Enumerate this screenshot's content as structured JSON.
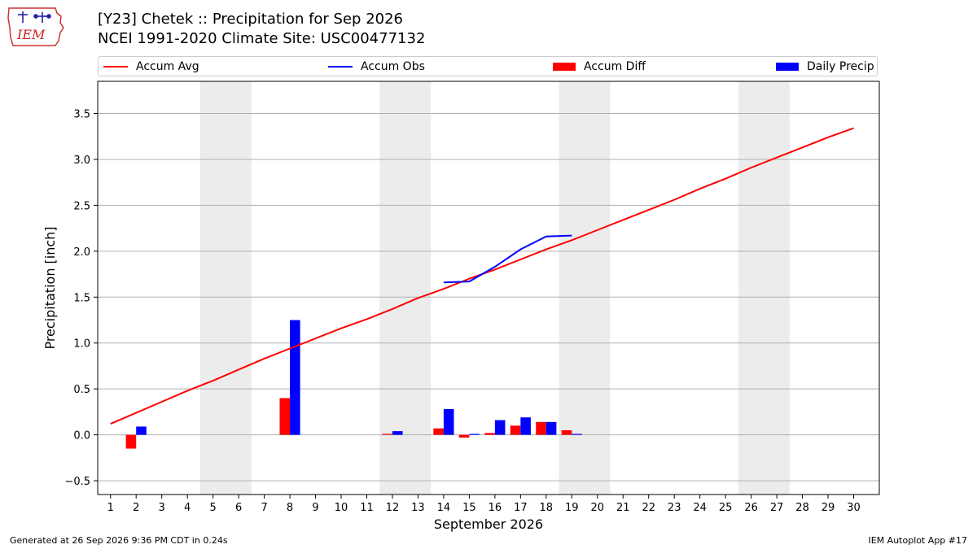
{
  "header": {
    "logo_text": "IEM",
    "title_line1": "[Y23] Chetek :: Precipitation for Sep 2026",
    "title_line2": "NCEI 1991-2020 Climate Site: USC00477132"
  },
  "footer": {
    "left": "Generated at 26 Sep 2026 9:36 PM CDT in 0.24s",
    "right": "IEM Autoplot App #17"
  },
  "colors": {
    "avg": "#ff0000",
    "obs": "#0000ff",
    "diff": "#ff0000",
    "daily": "#0000ff",
    "weekend": "#ececec",
    "grid": "#b0b0b0"
  },
  "chart_data": {
    "type": "bar",
    "title": "[Y23] Chetek :: Precipitation for Sep 2026",
    "subtitle": "NCEI 1991-2020 Climate Site: USC00477132",
    "xlabel": "September 2026",
    "ylabel": "Precipitation [inch]",
    "xlim": [
      0.5,
      31.0
    ],
    "ylim": [
      -0.65,
      3.85
    ],
    "yticks": [
      -0.5,
      0.0,
      0.5,
      1.0,
      1.5,
      2.0,
      2.5,
      3.0,
      3.5
    ],
    "ytick_labels": [
      "−0.5",
      "0.0",
      "0.5",
      "1.0",
      "1.5",
      "2.0",
      "2.5",
      "3.0",
      "3.5"
    ],
    "xticks": [
      1,
      2,
      3,
      4,
      5,
      6,
      7,
      8,
      9,
      10,
      11,
      12,
      13,
      14,
      15,
      16,
      17,
      18,
      19,
      20,
      21,
      22,
      23,
      24,
      25,
      26,
      27,
      28,
      29,
      30
    ],
    "grid": "horizontal",
    "legend_position": "top",
    "weekend_spans": [
      [
        4.5,
        6.5
      ],
      [
        11.5,
        13.5
      ],
      [
        18.5,
        20.5
      ],
      [
        25.5,
        27.5
      ]
    ],
    "series": [
      {
        "name": "Accum Avg",
        "kind": "line",
        "x": [
          1,
          2,
          3,
          4,
          5,
          6,
          7,
          8,
          9,
          10,
          11,
          12,
          13,
          14,
          15,
          16,
          17,
          18,
          19,
          20,
          21,
          22,
          23,
          24,
          25,
          26,
          27,
          28,
          29,
          30
        ],
        "values": [
          0.12,
          0.24,
          0.36,
          0.48,
          0.59,
          0.71,
          0.83,
          0.94,
          1.05,
          1.16,
          1.26,
          1.37,
          1.49,
          1.59,
          1.7,
          1.8,
          1.91,
          2.02,
          2.12,
          2.23,
          2.34,
          2.45,
          2.56,
          2.68,
          2.79,
          2.91,
          3.02,
          3.13,
          3.24,
          3.34
        ]
      },
      {
        "name": "Accum Obs",
        "kind": "line",
        "x": [
          14,
          15,
          16,
          17,
          18,
          19
        ],
        "values": [
          1.66,
          1.67,
          1.83,
          2.02,
          2.16,
          2.17
        ]
      },
      {
        "name": "Accum Diff",
        "kind": "bar",
        "x": [
          2,
          8,
          12,
          14,
          15,
          16,
          17,
          18,
          19
        ],
        "values": [
          -0.15,
          0.4,
          0.01,
          0.07,
          -0.03,
          0.02,
          0.1,
          0.14,
          0.05
        ]
      },
      {
        "name": "Daily Precip",
        "kind": "bar",
        "x": [
          2,
          8,
          12,
          14,
          15,
          16,
          17,
          18,
          19
        ],
        "values": [
          0.09,
          1.25,
          0.04,
          0.28,
          0.01,
          0.16,
          0.19,
          0.14,
          0.01
        ]
      }
    ]
  }
}
